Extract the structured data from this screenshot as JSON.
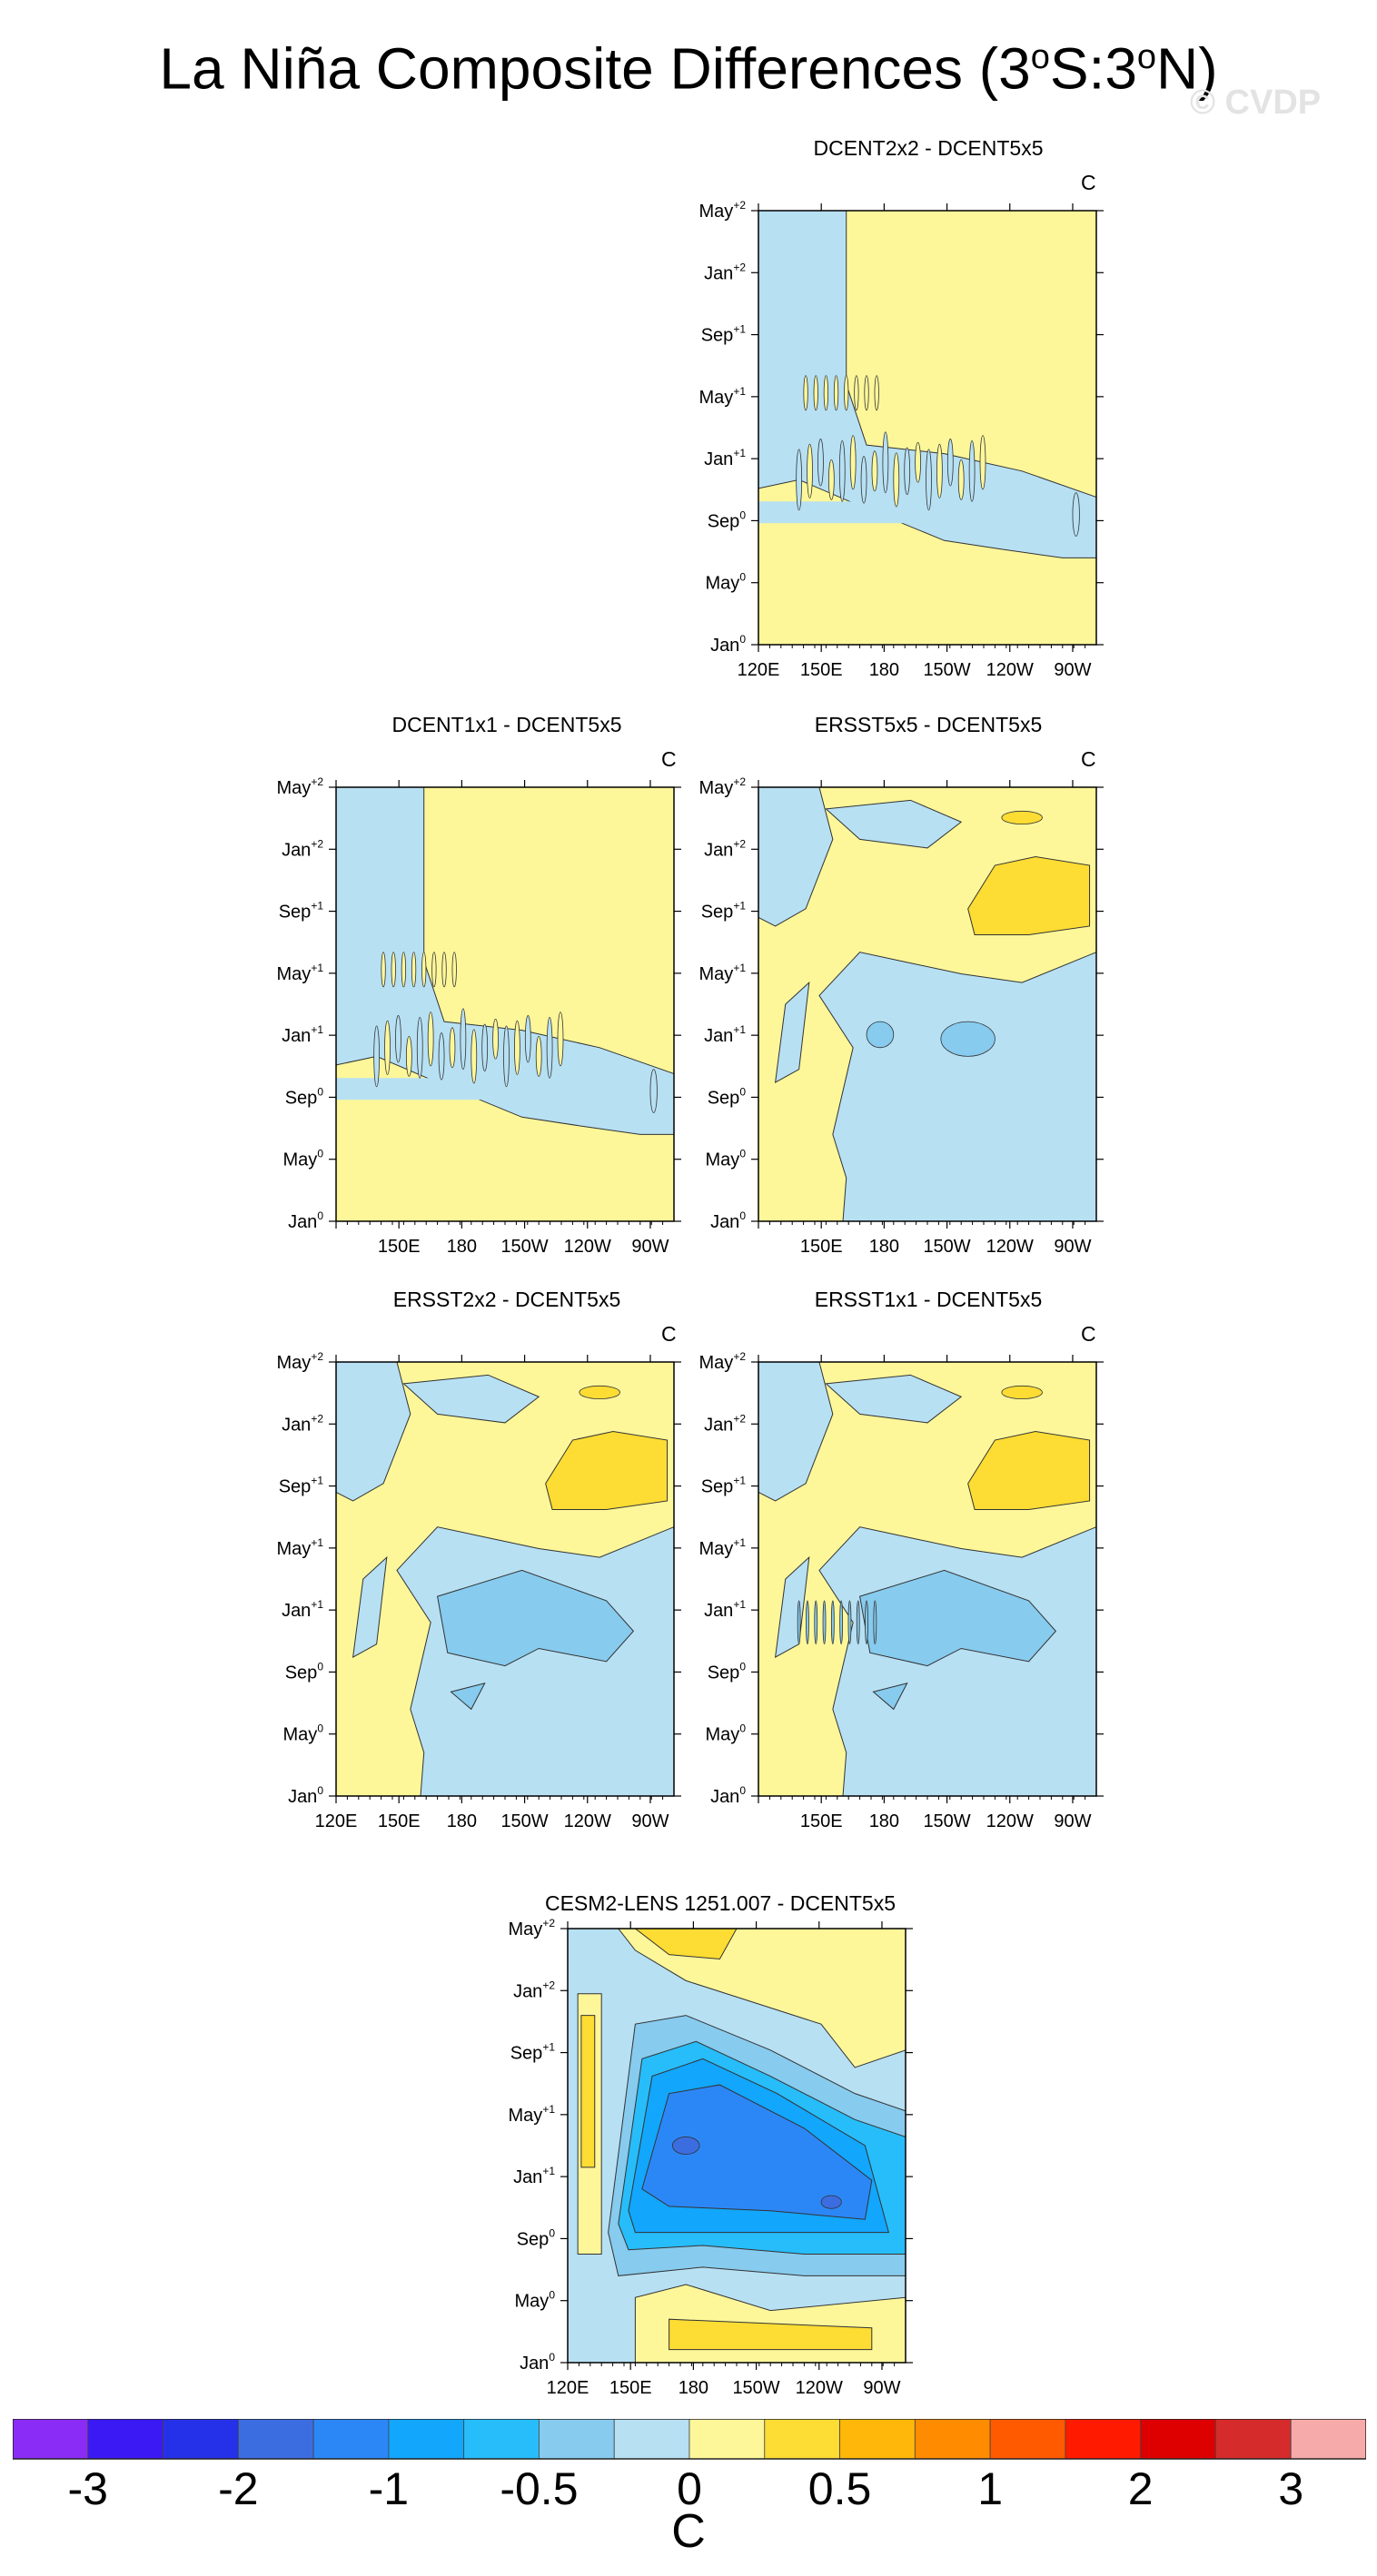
{
  "title": "La Niña Composite Differences (3°S:3°N)",
  "title_parts": {
    "main": "La Niña Composite Differences (3",
    "deg": "o",
    "s": "S:3",
    "deg2": "o",
    "n": "N)"
  },
  "watermark": "© CVDP",
  "colors": {
    "fill_neg_small": "#b7e0f3",
    "fill_neg_1": "#87cbee",
    "fill_neg_2": "#27bdfa",
    "fill_neg_3": "#12a6fc",
    "fill_neg_4": "#2c87f6",
    "fill_neg_5": "#3c6de0",
    "fill_pos_small": "#fdf79a",
    "fill_pos_1": "#fddc33",
    "fill_pos_2": "#ffb80a",
    "contour": "#333333"
  },
  "chart_data": [
    {
      "type": "heatmap",
      "title": "DCENT2x2 - DCENT5x5",
      "unit": "C",
      "xticks": [
        "120E",
        "150E",
        "180",
        "150W",
        "120W",
        "90W"
      ],
      "yticks": [
        {
          "m": "Jan",
          "s": "0"
        },
        {
          "m": "May",
          "s": "0"
        },
        {
          "m": "Sep",
          "s": "0"
        },
        {
          "m": "Jan",
          "s": "+1"
        },
        {
          "m": "May",
          "s": "+1"
        },
        {
          "m": "Sep",
          "s": "+1"
        },
        {
          "m": "Jan",
          "s": "+2"
        },
        {
          "m": "May",
          "s": "+2"
        }
      ],
      "pattern": "dcent2"
    },
    {
      "type": "heatmap",
      "title": "DCENT1x1 - DCENT5x5",
      "unit": "C",
      "xticks": [
        "",
        "150E",
        "180",
        "150W",
        "120W",
        "90W"
      ],
      "yticks": [
        {
          "m": "Jan",
          "s": "0"
        },
        {
          "m": "May",
          "s": "0"
        },
        {
          "m": "Sep",
          "s": "0"
        },
        {
          "m": "Jan",
          "s": "+1"
        },
        {
          "m": "May",
          "s": "+1"
        },
        {
          "m": "Sep",
          "s": "+1"
        },
        {
          "m": "Jan",
          "s": "+2"
        },
        {
          "m": "May",
          "s": "+2"
        }
      ],
      "pattern": "dcent1"
    },
    {
      "type": "heatmap",
      "title": "ERSST5x5 - DCENT5x5",
      "unit": "C",
      "xticks": [
        "",
        "150E",
        "180",
        "150W",
        "120W",
        "90W"
      ],
      "yticks": [
        {
          "m": "Jan",
          "s": "0"
        },
        {
          "m": "May",
          "s": "0"
        },
        {
          "m": "Sep",
          "s": "0"
        },
        {
          "m": "Jan",
          "s": "+1"
        },
        {
          "m": "May",
          "s": "+1"
        },
        {
          "m": "Sep",
          "s": "+1"
        },
        {
          "m": "Jan",
          "s": "+2"
        },
        {
          "m": "May",
          "s": "+2"
        }
      ],
      "pattern": "ersst5"
    },
    {
      "type": "heatmap",
      "title": "ERSST2x2 - DCENT5x5",
      "unit": "C",
      "xticks": [
        "120E",
        "150E",
        "180",
        "150W",
        "120W",
        "90W"
      ],
      "yticks": [
        {
          "m": "Jan",
          "s": "0"
        },
        {
          "m": "May",
          "s": "0"
        },
        {
          "m": "Sep",
          "s": "0"
        },
        {
          "m": "Jan",
          "s": "+1"
        },
        {
          "m": "May",
          "s": "+1"
        },
        {
          "m": "Sep",
          "s": "+1"
        },
        {
          "m": "Jan",
          "s": "+2"
        },
        {
          "m": "May",
          "s": "+2"
        }
      ],
      "pattern": "ersst2"
    },
    {
      "type": "heatmap",
      "title": "ERSST1x1 - DCENT5x5",
      "unit": "C",
      "xticks": [
        "",
        "150E",
        "180",
        "150W",
        "120W",
        "90W"
      ],
      "yticks": [
        {
          "m": "Jan",
          "s": "0"
        },
        {
          "m": "May",
          "s": "0"
        },
        {
          "m": "Sep",
          "s": "0"
        },
        {
          "m": "Jan",
          "s": "+1"
        },
        {
          "m": "May",
          "s": "+1"
        },
        {
          "m": "Sep",
          "s": "+1"
        },
        {
          "m": "Jan",
          "s": "+2"
        },
        {
          "m": "May",
          "s": "+2"
        }
      ],
      "pattern": "ersst1"
    },
    {
      "type": "heatmap",
      "title": "CESM2-LENS 1251.007 - DCENT5x5",
      "unit": "",
      "xticks": [
        "120E",
        "150E",
        "180",
        "150W",
        "120W",
        "90W"
      ],
      "yticks": [
        {
          "m": "Jan",
          "s": "0"
        },
        {
          "m": "May",
          "s": "0"
        },
        {
          "m": "Sep",
          "s": "0"
        },
        {
          "m": "Jan",
          "s": "+1"
        },
        {
          "m": "May",
          "s": "+1"
        },
        {
          "m": "Sep",
          "s": "+1"
        },
        {
          "m": "Jan",
          "s": "+2"
        },
        {
          "m": "May",
          "s": "+2"
        }
      ],
      "pattern": "cesm"
    }
  ],
  "colorbar": {
    "colors": [
      "#8b2cf6",
      "#3b19f5",
      "#2531e8",
      "#3c6de0",
      "#2c87f6",
      "#12a6fc",
      "#27bdfa",
      "#87cbee",
      "#b7e0f3",
      "#fdf79a",
      "#fddc33",
      "#ffb80a",
      "#ff8c00",
      "#ff5a00",
      "#ff1a00",
      "#de0000",
      "#d62b2b",
      "#f7aaaa"
    ],
    "labels": [
      "-3",
      "-2",
      "-1",
      "-0.5",
      "0",
      "0.5",
      "1",
      "2",
      "3"
    ],
    "unit": "C"
  }
}
